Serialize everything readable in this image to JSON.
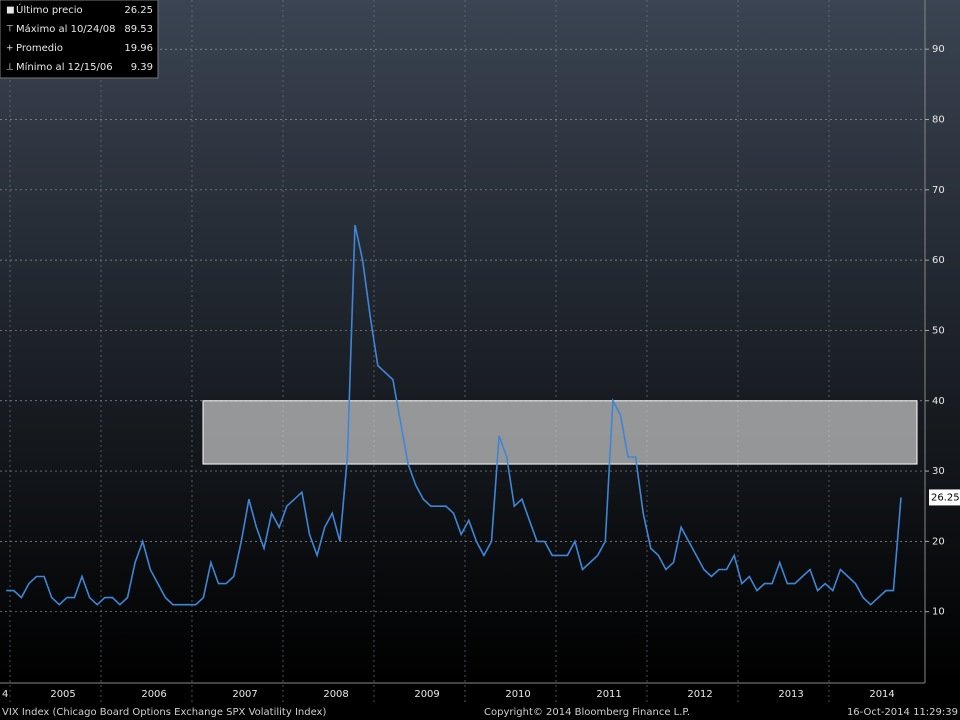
{
  "chart_data": {
    "type": "line",
    "categories": [
      "4",
      null,
      null,
      null,
      null,
      null,
      null,
      "2005",
      null,
      null,
      null,
      null,
      null,
      null,
      null,
      null,
      null,
      null,
      null,
      "2006",
      null,
      null,
      null,
      null,
      null,
      null,
      null,
      null,
      null,
      null,
      null,
      "2007",
      null,
      null,
      null,
      null,
      null,
      null,
      null,
      null,
      null,
      null,
      null,
      "2008",
      null,
      null,
      null,
      null,
      null,
      null,
      null,
      null,
      null,
      null,
      null,
      "2009",
      null,
      null,
      null,
      null,
      null,
      null,
      null,
      null,
      null,
      null,
      null,
      "2010",
      null,
      null,
      null,
      null,
      null,
      null,
      null,
      null,
      null,
      null,
      null,
      "2011",
      null,
      null,
      null,
      null,
      null,
      null,
      null,
      null,
      null,
      null,
      null,
      "2012",
      null,
      null,
      null,
      null,
      null,
      null,
      null,
      null,
      null,
      null,
      null,
      "2013",
      null,
      null,
      null,
      null,
      null,
      null,
      null,
      null,
      null,
      null,
      null,
      "2014",
      null,
      null,
      null
    ],
    "series": [
      {
        "name": "VIX Index (Chicago Board Options Exchange SPX Volatility Index)",
        "color": "#3f86d6",
        "values": [
          13,
          13,
          12,
          14,
          15,
          15,
          12,
          11,
          12,
          12,
          15,
          12,
          11,
          12,
          12,
          11,
          12,
          17,
          20,
          16,
          14,
          12,
          11,
          11,
          11,
          11,
          12,
          17,
          14,
          14,
          15,
          20,
          26,
          22,
          19,
          24,
          22,
          25,
          26,
          27,
          21,
          18,
          22,
          24,
          20,
          32,
          65,
          60,
          52,
          45,
          44,
          43,
          37,
          31,
          28,
          26,
          25,
          25,
          25,
          24,
          21,
          23,
          20,
          18,
          20,
          35,
          32,
          25,
          26,
          23,
          20,
          20,
          18,
          18,
          18,
          20,
          16,
          17,
          18,
          20,
          40,
          38,
          32,
          32,
          24,
          19,
          18,
          16,
          17,
          22,
          20,
          18,
          16,
          15,
          16,
          16,
          18,
          14,
          15,
          13,
          14,
          14,
          17,
          14,
          14,
          15,
          16,
          13,
          14,
          13,
          16,
          15,
          14,
          12,
          11,
          12,
          13,
          13,
          26.25
        ]
      }
    ],
    "ylim": [
      0,
      97
    ],
    "yticks": [
      10,
      20,
      30,
      40,
      50,
      60,
      70,
      80,
      90
    ],
    "grid": true,
    "highlight": [
      31,
      40
    ],
    "stats": [
      {
        "label": "Último precio",
        "value": 26.25
      },
      {
        "label": "Máximo al 10/24/08",
        "value": 89.53
      },
      {
        "label": "Promedio",
        "value": 19.96
      },
      {
        "label": "Mínimo al 12/15/06",
        "value": 9.39
      }
    ],
    "copyright": "Copyright© 2014 Bloomberg Finance L.P.",
    "timestamp": "16-Oct-2014 11:29:39"
  }
}
